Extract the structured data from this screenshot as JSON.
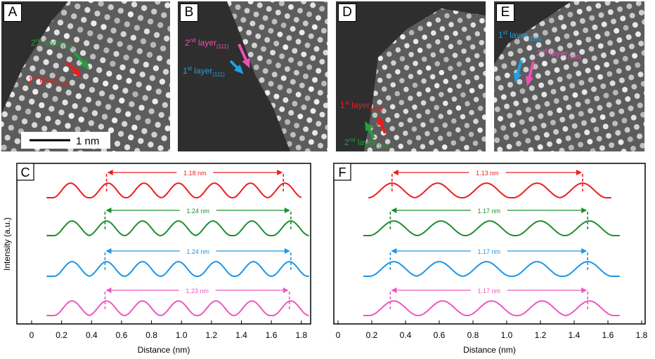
{
  "figure": {
    "images": [
      {
        "id": "A",
        "letter": "A",
        "labels": [
          {
            "main": "2",
            "sup": "nd",
            "rest": " layer",
            "sub": "(111)",
            "color": "#22a13a"
          },
          {
            "main": "1",
            "sup": "st",
            "rest": " layer",
            "sub": "(111)",
            "color": "#ee1c1c"
          }
        ],
        "scalebar": "1 nm"
      },
      {
        "id": "B",
        "letter": "B",
        "labels": [
          {
            "main": "2",
            "sup": "nd",
            "rest": " layer",
            "sub": "(111)",
            "color": "#ee4fb5"
          },
          {
            "main": "1",
            "sup": "st",
            "rest": " layer",
            "sub": "(111)",
            "color": "#1ca0e8"
          }
        ]
      },
      {
        "id": "D",
        "letter": "D",
        "labels": [
          {
            "main": "1",
            "sup": "st",
            "rest": " layer",
            "sub": "(100)",
            "color": "#ee1c1c"
          },
          {
            "main": "2",
            "sup": "nd",
            "rest": " layer",
            "sub": "(100)",
            "color": "#22a13a"
          }
        ]
      },
      {
        "id": "E",
        "letter": "E",
        "labels": [
          {
            "main": "1",
            "sup": "st",
            "rest": " layer",
            "sub": "(100)",
            "color": "#1ca0e8"
          },
          {
            "main": "2",
            "sup": "nd",
            "rest": " layer",
            "sub": "(100)",
            "color": "#ee4fb5"
          }
        ]
      }
    ],
    "ylabel": "Intensity (a.u.)"
  },
  "chart_data": [
    {
      "type": "line",
      "panel": "C",
      "xlabel": "Distance (nm)",
      "ylabel": "Intensity (a.u.)",
      "xlim": [
        0,
        1.9
      ],
      "xticks": [
        "0",
        "0.2",
        "0.4",
        "0.6",
        "0.8",
        "1.0",
        "1.2",
        "1.4",
        "1.6",
        "1.8"
      ],
      "series": [
        {
          "color": "#ee1c1c",
          "x_start": 0.1,
          "x_end": 1.8,
          "peaks": [
            0.26,
            0.51,
            0.75,
            0.98,
            1.22,
            1.46,
            1.69
          ],
          "marker_from": 0.5,
          "marker_to": 1.68,
          "annotation": "1.18 nm"
        },
        {
          "color": "#1f8c2e",
          "x_start": 0.1,
          "x_end": 1.85,
          "peaks": [
            0.27,
            0.5,
            0.74,
            0.98,
            1.21,
            1.47,
            1.73
          ],
          "marker_from": 0.49,
          "marker_to": 1.73,
          "annotation": "1.24 nm"
        },
        {
          "color": "#1c96e6",
          "x_start": 0.1,
          "x_end": 1.85,
          "peaks": [
            0.27,
            0.5,
            0.74,
            0.98,
            1.23,
            1.48,
            1.72
          ],
          "marker_from": 0.49,
          "marker_to": 1.73,
          "annotation": "1.24 nm"
        },
        {
          "color": "#ec58be",
          "x_start": 0.1,
          "x_end": 1.85,
          "peaks": [
            0.27,
            0.5,
            0.74,
            0.98,
            1.23,
            1.47,
            1.73
          ],
          "marker_from": 0.49,
          "marker_to": 1.72,
          "annotation": "1.23 nm"
        }
      ]
    },
    {
      "type": "line",
      "panel": "F",
      "xlabel": "Distance (nm)",
      "xlim": [
        0,
        1.8
      ],
      "xticks": [
        "0",
        "0.2",
        "0.4",
        "0.6",
        "0.8",
        "1.0",
        "1.2",
        "1.4",
        "1.6",
        "1.8"
      ],
      "series": [
        {
          "color": "#ee1c1c",
          "x_start": 0.18,
          "x_end": 1.62,
          "peaks": [
            0.32,
            0.59,
            0.88,
            1.18,
            1.45
          ],
          "marker_from": 0.32,
          "marker_to": 1.45,
          "annotation": "1.13 nm"
        },
        {
          "color": "#1f8c2e",
          "x_start": 0.15,
          "x_end": 1.67,
          "peaks": [
            0.33,
            0.61,
            0.9,
            1.2,
            1.49
          ],
          "marker_from": 0.31,
          "marker_to": 1.48,
          "annotation": "1.17 nm"
        },
        {
          "color": "#1c96e6",
          "x_start": 0.15,
          "x_end": 1.67,
          "peaks": [
            0.33,
            0.6,
            0.88,
            1.18,
            1.48
          ],
          "marker_from": 0.31,
          "marker_to": 1.48,
          "annotation": "1.17 nm"
        },
        {
          "color": "#ec58be",
          "x_start": 0.15,
          "x_end": 1.67,
          "peaks": [
            0.33,
            0.62,
            0.91,
            1.21,
            1.49
          ],
          "marker_from": 0.31,
          "marker_to": 1.48,
          "annotation": "1.17 nm"
        }
      ]
    }
  ]
}
